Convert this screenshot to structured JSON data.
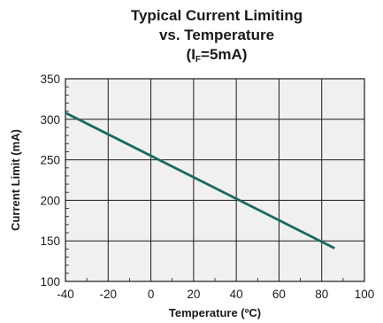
{
  "chart_data": {
    "type": "line",
    "title_line1": "Typical Current Limiting",
    "title_line2": "vs. Temperature",
    "title_line3_prefix": "(I",
    "title_line3_sub": "F",
    "title_line3_suffix": "=5mA)",
    "xlabel": "Temperature (ºC)",
    "ylabel": "Current Limit (mA)",
    "xlim": [
      -40,
      100
    ],
    "ylim": [
      100,
      350
    ],
    "x_ticks": [
      -40,
      -20,
      0,
      20,
      40,
      60,
      80,
      100
    ],
    "y_ticks": [
      100,
      150,
      200,
      250,
      300,
      350
    ],
    "grid": true,
    "plot_background": "#f0f0f0",
    "series_color": "#1a6b5f",
    "series": [
      {
        "x": [
          -40,
          86
        ],
        "y": [
          308,
          141
        ]
      }
    ]
  }
}
